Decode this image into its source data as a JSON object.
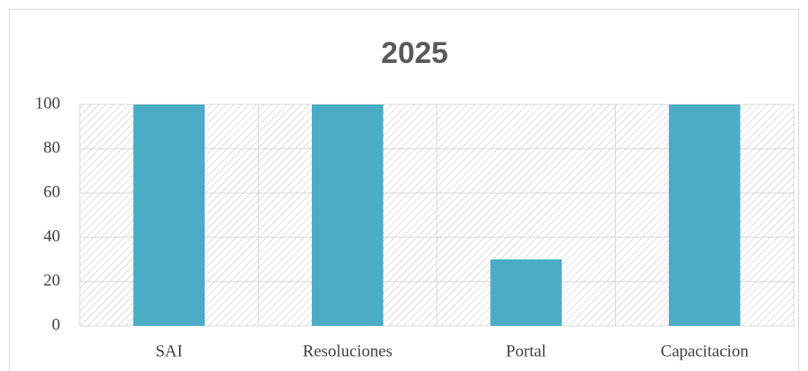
{
  "chart_data": {
    "type": "bar",
    "title": "2025",
    "categories": [
      "SAI",
      "Resoluciones",
      "Portal",
      "Capacitacion"
    ],
    "values": [
      100,
      100,
      30,
      100
    ],
    "color": "#4bacc6",
    "ylim": [
      0,
      100
    ],
    "yticks": [
      0,
      20,
      40,
      60,
      80,
      100
    ],
    "grid": true
  }
}
